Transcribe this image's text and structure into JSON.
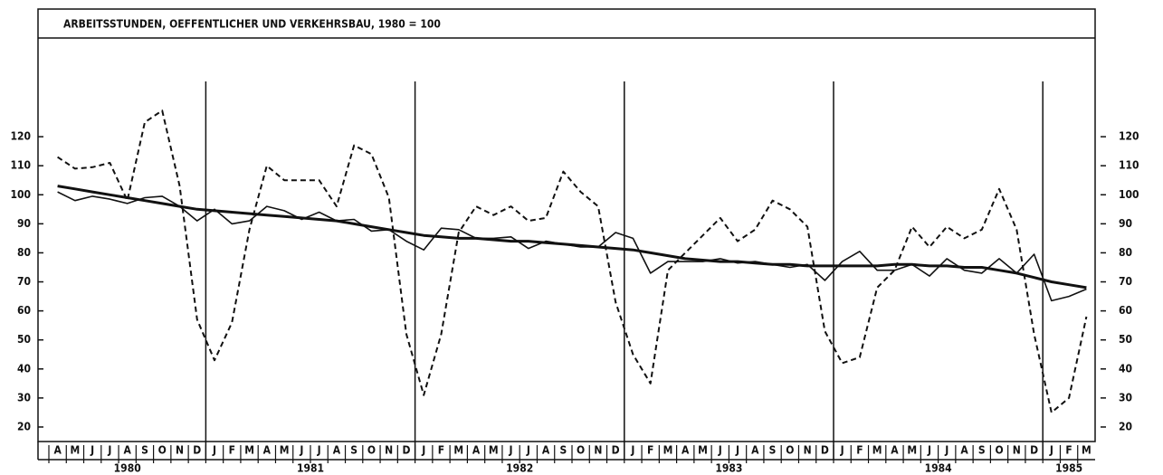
{
  "chart_data": {
    "type": "line",
    "title": "ARBEITSSTUNDEN, OEFFENTLICHER UND VERKEHRSBAU, 1980 = 100",
    "categories": [
      "A",
      "M",
      "J",
      "J",
      "A",
      "S",
      "O",
      "N",
      "D",
      "J",
      "F",
      "M",
      "A",
      "M",
      "J",
      "J",
      "A",
      "S",
      "O",
      "N",
      "D",
      "J",
      "F",
      "M",
      "A",
      "M",
      "J",
      "J",
      "A",
      "S",
      "O",
      "N",
      "D",
      "J",
      "F",
      "M",
      "A",
      "M",
      "J",
      "J",
      "A",
      "S",
      "O",
      "N",
      "D",
      "J",
      "F",
      "M",
      "A",
      "M",
      "J",
      "J",
      "A",
      "S",
      "O",
      "N",
      "D",
      "J",
      "F",
      "M"
    ],
    "year_labels": [
      "1980",
      "1981",
      "1982",
      "1983",
      "1984",
      "1985"
    ],
    "series": [
      {
        "style": "dashed",
        "color": "#111",
        "values": [
          113,
          109,
          109.5,
          111,
          98,
          125,
          129,
          103,
          57,
          43,
          56,
          88,
          110,
          105,
          105,
          105,
          96,
          117,
          114,
          99,
          52,
          31,
          52,
          87,
          96,
          93,
          96,
          91,
          92,
          108,
          101,
          96,
          63,
          45,
          35,
          74,
          80,
          86,
          92,
          84,
          88,
          98,
          95,
          89,
          53,
          42,
          44,
          68,
          74,
          89,
          82,
          89,
          85,
          88,
          102,
          88,
          52,
          25,
          30,
          58
        ]
      },
      {
        "style": "thin",
        "color": "#111",
        "values": [
          101,
          98,
          99.5,
          98.5,
          97,
          99,
          99.5,
          96,
          91,
          95,
          90,
          91,
          96,
          94.5,
          91.5,
          94,
          91,
          91.5,
          87.5,
          88,
          84,
          81,
          88.5,
          88,
          85,
          85,
          85.5,
          81.5,
          84,
          83,
          82,
          82,
          87,
          85,
          73,
          77,
          77,
          77,
          78,
          76.5,
          77,
          76,
          75,
          76,
          70.5,
          77,
          80.5,
          74,
          74,
          76,
          72,
          78,
          74,
          73,
          78,
          73,
          79.5,
          63.5,
          65,
          67.5
        ]
      },
      {
        "style": "thick",
        "color": "#111",
        "values": [
          103,
          102,
          101,
          100,
          99,
          98,
          97,
          96,
          95,
          94.5,
          94,
          93.5,
          93,
          92.5,
          92,
          91.5,
          91,
          90,
          89,
          88,
          87,
          86,
          85.5,
          85,
          85,
          84.5,
          84,
          84,
          83.5,
          83,
          82.5,
          82,
          81.5,
          81,
          80,
          79,
          78,
          77.5,
          77,
          77,
          76.5,
          76,
          76,
          75.5,
          75.5,
          75.5,
          75.5,
          75.5,
          76,
          76,
          75.5,
          75.5,
          75,
          75,
          74,
          73,
          71.5,
          70,
          69,
          68
        ]
      }
    ],
    "ylim": [
      15,
      154
    ],
    "yticks": [
      20,
      30,
      40,
      50,
      60,
      70,
      80,
      90,
      100,
      110,
      120
    ]
  }
}
